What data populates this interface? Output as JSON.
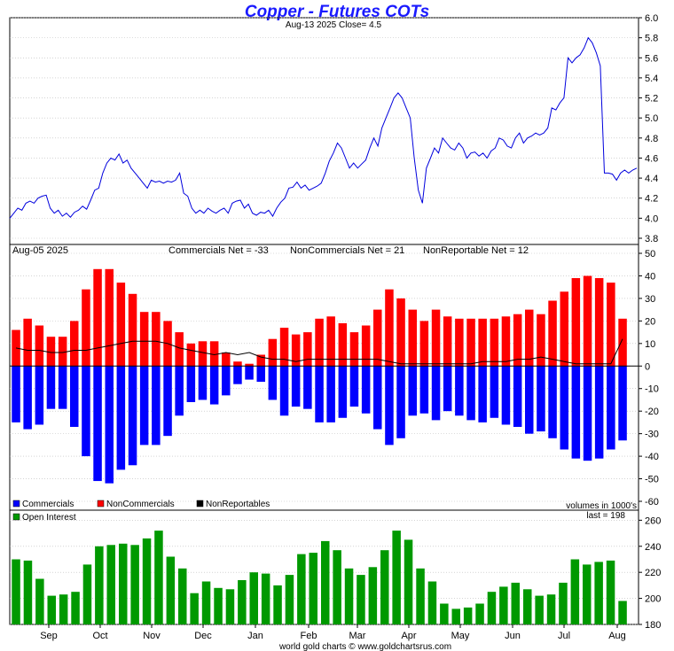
{
  "header": {
    "title": "Copper - Futures COTs",
    "subtitle": "Aug-13  2025   Close= 4.5"
  },
  "footer": {
    "credit": "world gold charts © www.goldchartsrus.com"
  },
  "colors": {
    "price_line": "#0000dd",
    "commercials": "#0000ff",
    "noncommercials": "#ff0000",
    "nonreportables": "#000000",
    "open_interest": "#009900",
    "grid": "#bbbbbb"
  },
  "chart_data": [
    {
      "type": "line",
      "name": "price",
      "ylim": [
        3.8,
        6.0
      ],
      "yticks": [
        "3.8",
        "4.0",
        "4.2",
        "4.4",
        "4.6",
        "4.8",
        "5.0",
        "5.2",
        "5.4",
        "5.6",
        "5.8",
        "6.0"
      ],
      "grid": true,
      "values": [
        4.0,
        4.05,
        4.1,
        4.08,
        4.15,
        4.17,
        4.15,
        4.2,
        4.22,
        4.23,
        4.1,
        4.05,
        4.08,
        4.02,
        4.05,
        4.01,
        4.06,
        4.08,
        4.12,
        4.09,
        4.18,
        4.28,
        4.3,
        4.45,
        4.55,
        4.6,
        4.58,
        4.64,
        4.55,
        4.58,
        4.5,
        4.45,
        4.4,
        4.35,
        4.3,
        4.38,
        4.36,
        4.37,
        4.35,
        4.37,
        4.36,
        4.38,
        4.45,
        4.25,
        4.22,
        4.1,
        4.05,
        4.08,
        4.05,
        4.1,
        4.07,
        4.05,
        4.08,
        4.1,
        4.05,
        4.15,
        4.17,
        4.18,
        4.1,
        4.14,
        4.05,
        4.03,
        4.06,
        4.05,
        4.08,
        4.02,
        4.1,
        4.16,
        4.2,
        4.3,
        4.31,
        4.36,
        4.3,
        4.33,
        4.28,
        4.3,
        4.32,
        4.35,
        4.45,
        4.57,
        4.65,
        4.75,
        4.7,
        4.6,
        4.5,
        4.55,
        4.5,
        4.54,
        4.58,
        4.7,
        4.8,
        4.72,
        4.9,
        5.0,
        5.1,
        5.2,
        5.25,
        5.2,
        5.1,
        5.0,
        4.6,
        4.28,
        4.15,
        4.5,
        4.6,
        4.7,
        4.65,
        4.8,
        4.75,
        4.7,
        4.68,
        4.75,
        4.7,
        4.6,
        4.65,
        4.66,
        4.62,
        4.65,
        4.6,
        4.67,
        4.7,
        4.8,
        4.78,
        4.72,
        4.7,
        4.8,
        4.85,
        4.75,
        4.8,
        4.82,
        4.85,
        4.83,
        4.85,
        4.9,
        5.1,
        5.08,
        5.15,
        5.2,
        5.6,
        5.55,
        5.6,
        5.63,
        5.7,
        5.8,
        5.75,
        5.65,
        5.52,
        4.45,
        4.45,
        4.44,
        4.38,
        4.45,
        4.48,
        4.45,
        4.48,
        4.5
      ]
    },
    {
      "type": "bar",
      "name": "COT net positions",
      "labels": {
        "date": "Aug-05  2025",
        "commercials": "Commercials Net = -33",
        "noncommercials": "NonCommercials Net = 21",
        "nonreportables": "NonReportable Net = 12"
      },
      "ylim": [
        -60,
        50
      ],
      "yticks": [
        "-60",
        "-50",
        "-40",
        "-30",
        "-20",
        "-10",
        "0",
        "10",
        "20",
        "30",
        "40",
        "50"
      ],
      "units_note": "volumes in 1000's",
      "legend": [
        {
          "label": "Commercials",
          "color": "#0000ff"
        },
        {
          "label": "NonCommercials",
          "color": "#ff0000"
        },
        {
          "label": "NonReportables",
          "color": "#000000"
        }
      ],
      "series": [
        {
          "name": "Commercials",
          "values": [
            -25,
            -28,
            -26,
            -19,
            -19,
            -27,
            -40,
            -51,
            -52,
            -46,
            -44,
            -35,
            -35,
            -31,
            -22,
            -16,
            -15,
            -17,
            -13,
            -8,
            -6,
            -7,
            -15,
            -22,
            -18,
            -19,
            -25,
            -25,
            -23,
            -18,
            -21,
            -28,
            -35,
            -32,
            -22,
            -21,
            -24,
            -20,
            -22,
            -24,
            -25,
            -23,
            -26,
            -27,
            -30,
            -29,
            -32,
            -37,
            -41,
            -42,
            -41,
            -37,
            -33
          ]
        },
        {
          "name": "NonCommercials",
          "values": [
            16,
            21,
            18,
            13,
            13,
            20,
            34,
            43,
            43,
            37,
            32,
            24,
            24,
            20,
            15,
            10,
            11,
            11,
            6,
            2,
            1,
            5,
            12,
            17,
            14,
            15,
            21,
            22,
            19,
            15,
            18,
            25,
            34,
            30,
            25,
            20,
            25,
            22,
            21,
            21,
            21,
            21,
            22,
            23,
            25,
            23,
            29,
            33,
            39,
            40,
            39,
            37,
            21
          ]
        },
        {
          "name": "NonReportables",
          "values": [
            8,
            7,
            7,
            6,
            6,
            7,
            7,
            8,
            9,
            10,
            11,
            11,
            11,
            10,
            8,
            7,
            6,
            5,
            6,
            5,
            6,
            4,
            3,
            3,
            2,
            3,
            3,
            3,
            3,
            3,
            3,
            3,
            2,
            1,
            1,
            1,
            1,
            1,
            1,
            1,
            2,
            2,
            2,
            3,
            3,
            4,
            3,
            2,
            1,
            1,
            1,
            1,
            12
          ]
        }
      ]
    },
    {
      "type": "bar",
      "name": "Open Interest",
      "legend": [
        {
          "label": "Open Interest",
          "color": "#009900"
        }
      ],
      "last_label": "last = 198",
      "ylim": [
        180,
        265
      ],
      "yticks": [
        "180",
        "200",
        "220",
        "240",
        "260"
      ],
      "values": [
        230,
        229,
        215,
        202,
        203,
        205,
        226,
        240,
        241,
        242,
        241,
        246,
        252,
        232,
        223,
        204,
        213,
        208,
        207,
        214,
        220,
        219,
        210,
        218,
        234,
        235,
        244,
        237,
        223,
        218,
        224,
        237,
        252,
        245,
        223,
        213,
        196,
        192,
        193,
        196,
        205,
        209,
        212,
        207,
        202,
        203,
        212,
        230,
        226,
        228,
        229,
        198
      ]
    }
  ],
  "x_axis": {
    "months": [
      "Sep",
      "Oct",
      "Nov",
      "Dec",
      "Jan",
      "Feb",
      "Mar",
      "Apr",
      "May",
      "Jun",
      "Jul",
      "Aug"
    ]
  }
}
